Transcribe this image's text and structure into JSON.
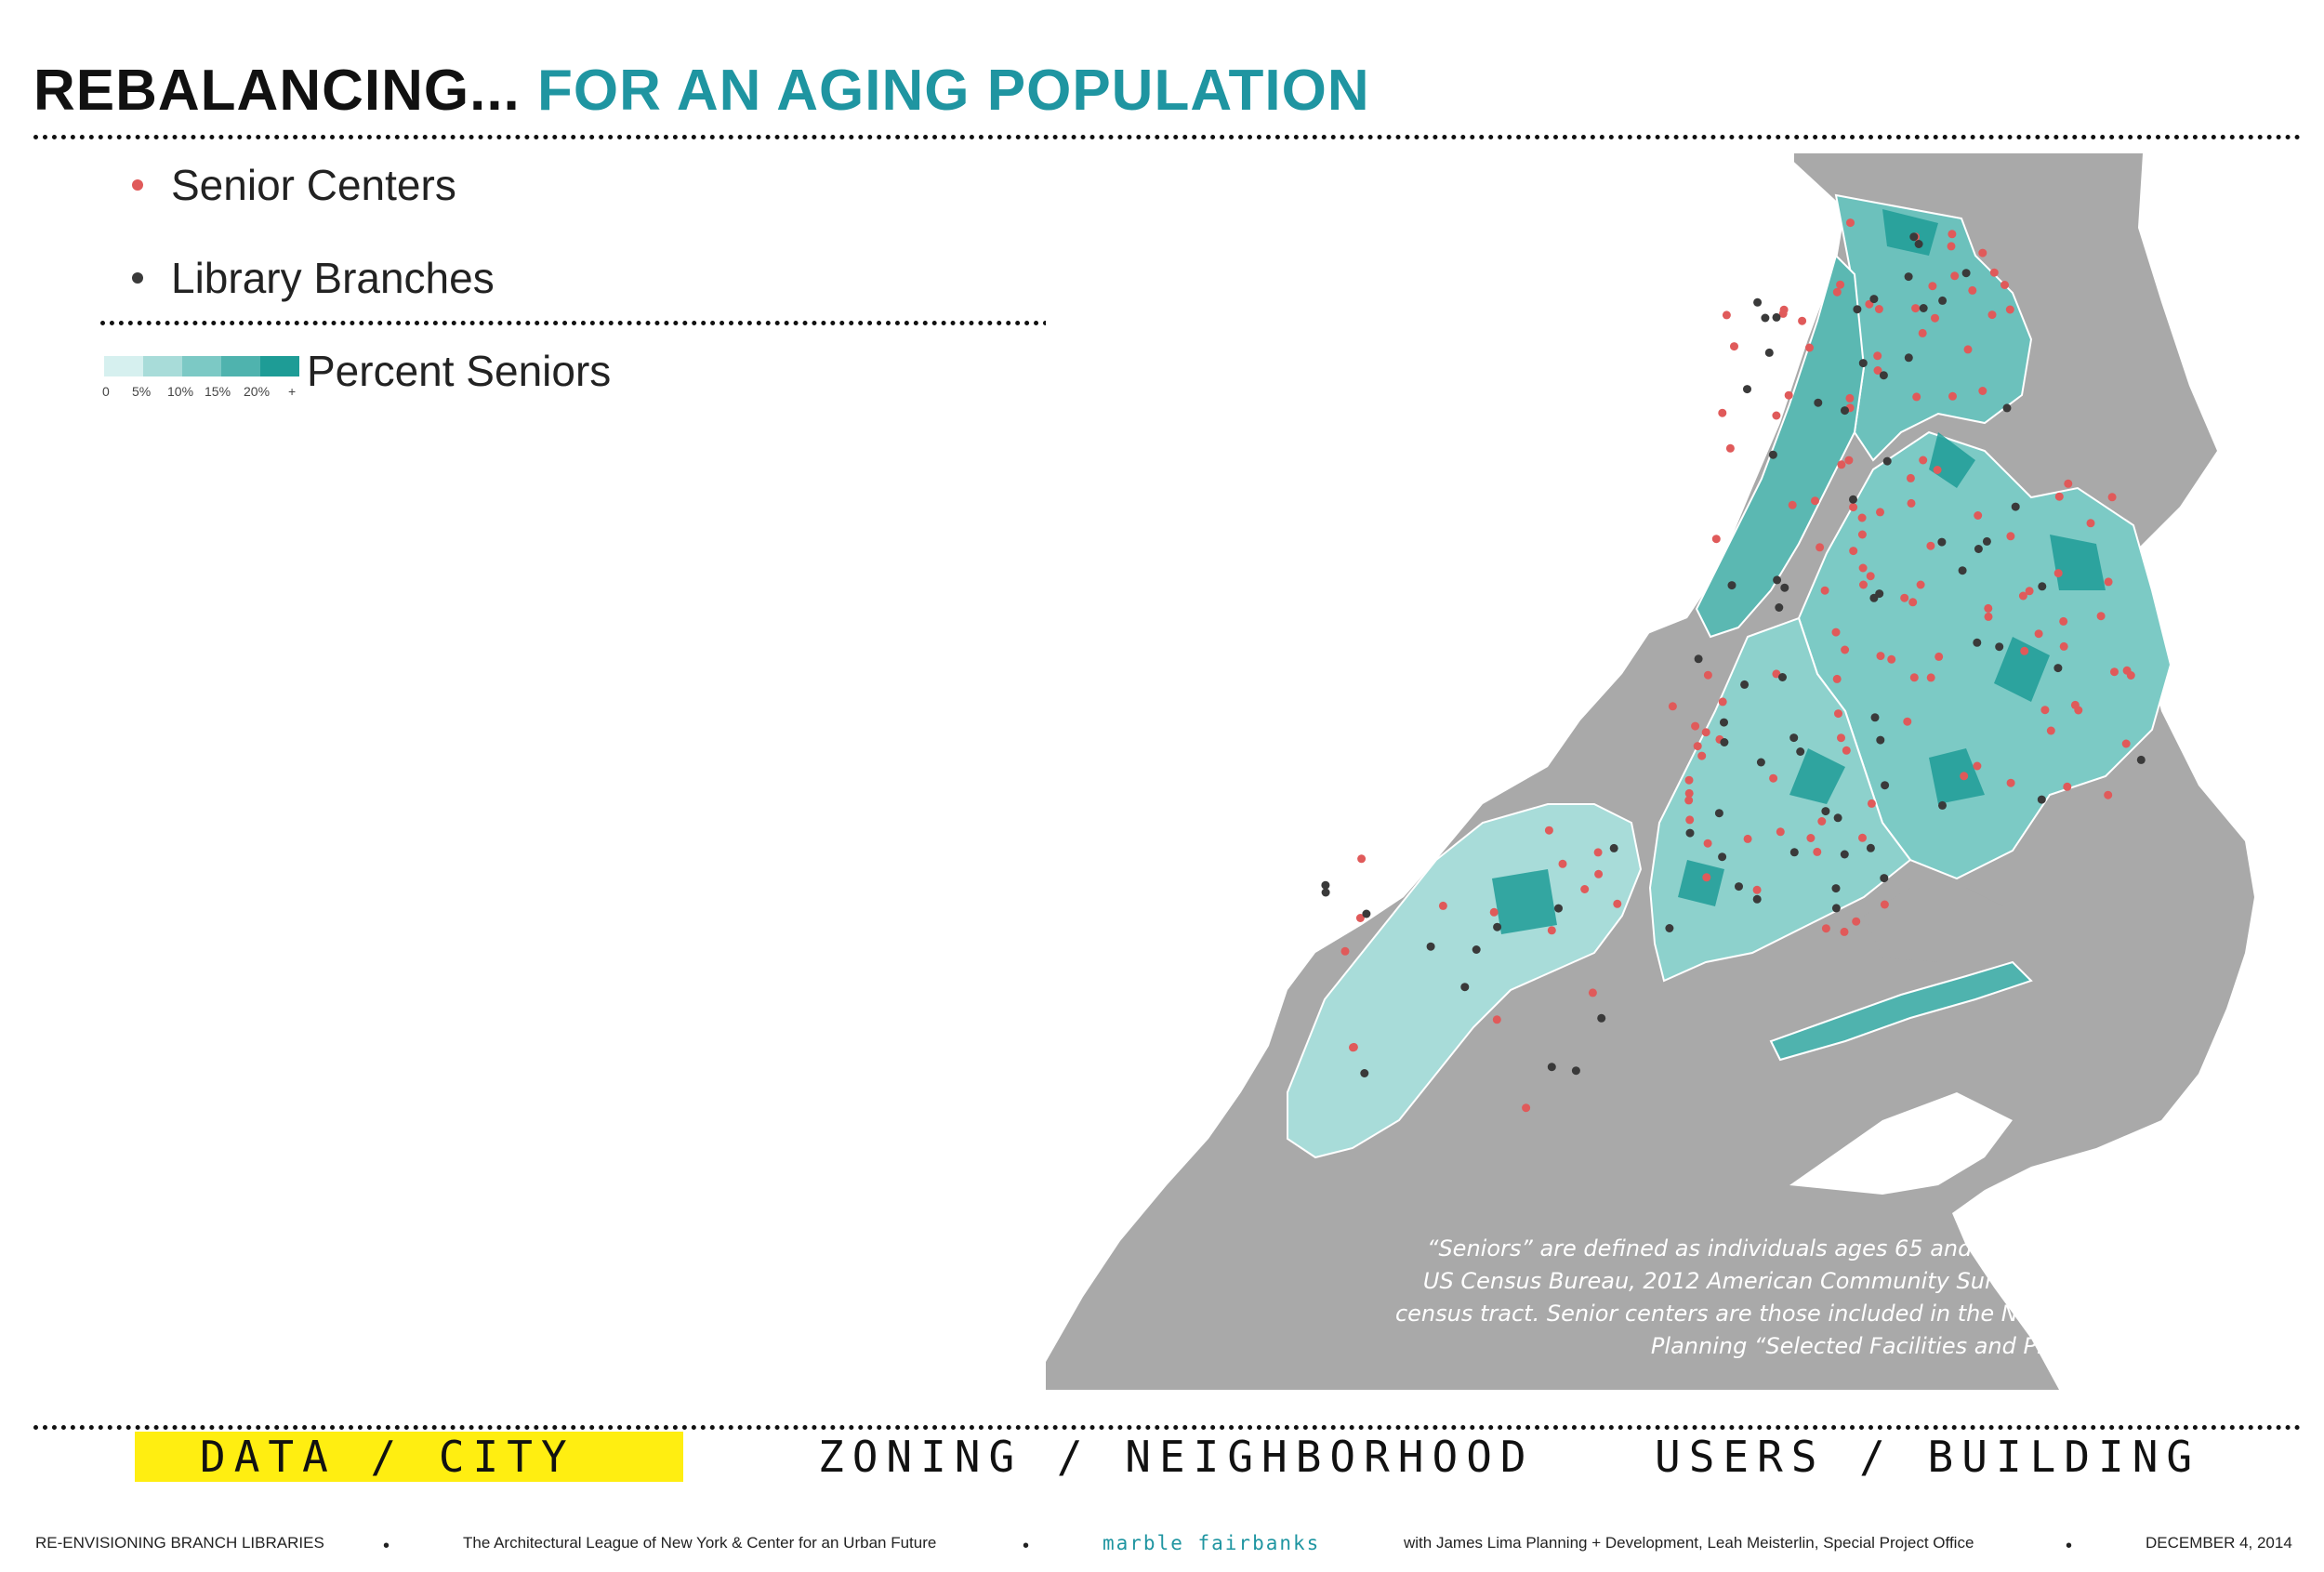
{
  "header": {
    "title_part1": "REBALANCING...",
    "title_part2": "FOR AN AGING POPULATION"
  },
  "legend": {
    "items": [
      {
        "label": "Senior Centers",
        "color": "#e05a5a"
      },
      {
        "label": "Library Branches",
        "color": "#3a3a3a"
      }
    ],
    "scale_title": "Percent Seniors",
    "scale_ticks": [
      "0",
      "5%",
      "10%",
      "15%",
      "20%",
      "+"
    ],
    "scale_colors": [
      "#d6f0ef",
      "#a8dcd9",
      "#7cc9c5",
      "#4fb3ae",
      "#1e9c96"
    ]
  },
  "map": {
    "land_color": "#a9a9a9",
    "water_color": "#ffffff",
    "caption": "“Seniors” are defined as individuals ages 65 and older. Values are from the US Census Bureau, 2012 American Community Survey 5-Year Estimates, by census tract. Senior centers are those included in the NYC Department of City Planning “Selected Facilities and Program Sites (2013)."
  },
  "nav": {
    "items": [
      {
        "label": "DATA / CITY",
        "active": true
      },
      {
        "label": "ZONING / NEIGHBORHOOD",
        "active": false
      },
      {
        "label": "USERS / BUILDING",
        "active": false
      }
    ]
  },
  "footer": {
    "project": "RE-ENVISIONING BRANCH LIBRARIES",
    "partners": "The Architectural League of New York & Center for an Urban Future",
    "brand": "marble fairbanks",
    "collaborators": "with James Lima Planning + Development, Leah Meisterlin, Special Project Office",
    "date": "DECEMBER 4, 2014"
  }
}
